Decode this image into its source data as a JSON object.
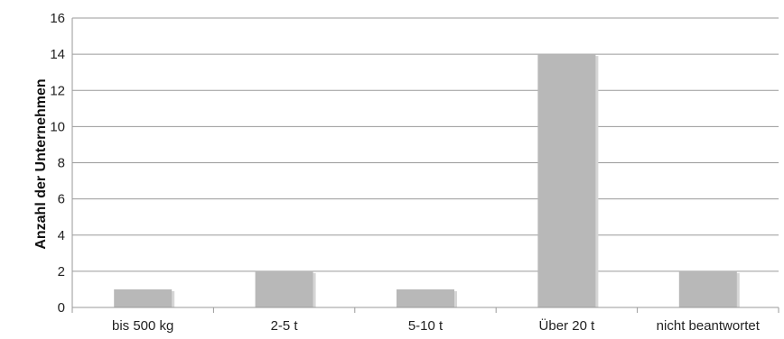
{
  "chart_data": {
    "type": "bar",
    "title": "",
    "xlabel": "",
    "ylabel": "Anzahl der Unternehmen",
    "categories": [
      "bis 500 kg",
      "2-5 t",
      "5-10 t",
      "Über 20 t",
      "nicht beantwortet"
    ],
    "values": [
      1,
      2,
      1,
      14,
      2
    ],
    "ylim": [
      0,
      16
    ],
    "yticks": [
      0,
      2,
      4,
      6,
      8,
      10,
      12,
      14,
      16
    ],
    "grid": true,
    "legend": "none",
    "bar_color": "#b8b8b8",
    "grid_color": "#9a9a9a"
  }
}
